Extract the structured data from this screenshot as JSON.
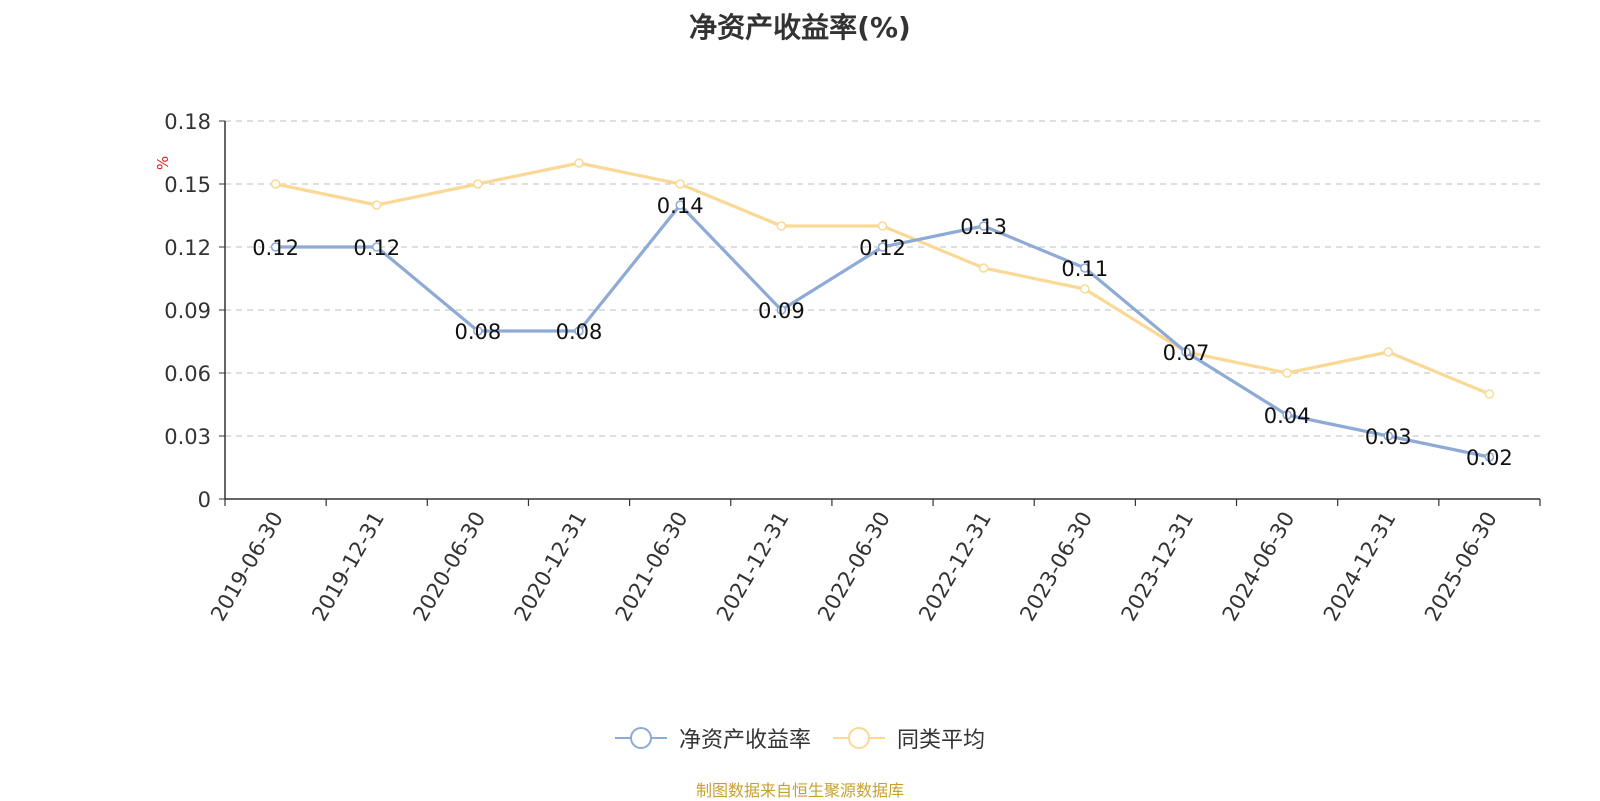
{
  "chart_data": {
    "type": "line",
    "title": "净资产收益率(%)",
    "ylabel": "%",
    "xlabel": "",
    "categories": [
      "2019-06-30",
      "2019-12-31",
      "2020-06-30",
      "2020-12-31",
      "2021-06-30",
      "2021-12-31",
      "2022-06-30",
      "2022-12-31",
      "2023-06-30",
      "2023-12-31",
      "2024-06-30",
      "2024-12-31",
      "2025-06-30"
    ],
    "ylim": [
      0,
      0.18
    ],
    "yticks": [
      0,
      0.03,
      0.06,
      0.09,
      0.12,
      0.15,
      0.18
    ],
    "ytick_labels": [
      "0",
      "0.03",
      "0.06",
      "0.09",
      "0.12",
      "0.15",
      "0.18"
    ],
    "grid": true,
    "legend_position": "bottom-center",
    "series": [
      {
        "name": "净资产收益率",
        "color": "#8eaad6",
        "show_labels": true,
        "values": [
          0.12,
          0.12,
          0.08,
          0.08,
          0.14,
          0.09,
          0.12,
          0.13,
          0.11,
          0.07,
          0.04,
          0.03,
          0.02
        ],
        "labels": [
          "0.12",
          "0.12",
          "0.08",
          "0.08",
          "0.14",
          "0.09",
          "0.12",
          "0.13",
          "0.11",
          "0.07",
          "0.04",
          "0.03",
          "0.02"
        ]
      },
      {
        "name": "同类平均",
        "color": "#fad996",
        "show_labels": false,
        "values": [
          0.15,
          0.14,
          0.15,
          0.16,
          0.15,
          0.13,
          0.13,
          0.11,
          0.1,
          0.07,
          0.06,
          0.07,
          0.05
        ]
      }
    ]
  },
  "footer": {
    "text": "制图数据来自恒生聚源数据库",
    "color": "#c8a030"
  },
  "ylabel_color": "#e02020"
}
